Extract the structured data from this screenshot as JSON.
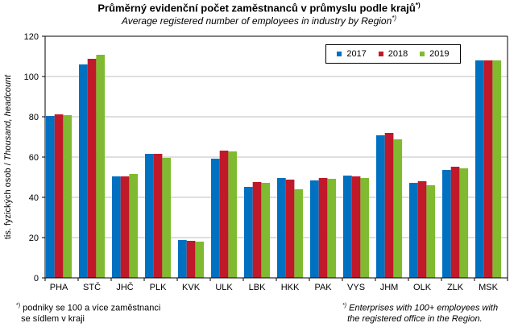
{
  "chart_data": {
    "type": "bar",
    "title": "Průměrný evidenční počet zaměstnanců v průmyslu podle krajů",
    "title_mark": "*)",
    "subtitle": "Average registered number of employees in industry by Region",
    "subtitle_mark": "*)",
    "ylabel_cz": "tis. fyzických osob / ",
    "ylabel_en": "Thousand, headcount",
    "xlabel": "",
    "ylim": [
      0,
      120
    ],
    "yticks": [
      0,
      20,
      40,
      60,
      80,
      100,
      120
    ],
    "grid": true,
    "legend_position": "top-right",
    "categories": [
      "PHA",
      "STČ",
      "JHČ",
      "PLK",
      "KVK",
      "ULK",
      "LBK",
      "HKK",
      "PAK",
      "VYS",
      "JHM",
      "OLK",
      "ZLK",
      "MSK"
    ],
    "series": [
      {
        "name": "2017",
        "color": "#0070C0",
        "values": [
          80.4,
          106.0,
          50.4,
          61.6,
          18.8,
          59.2,
          45.2,
          49.6,
          48.4,
          50.8,
          70.8,
          47.2,
          53.6,
          108.0
        ]
      },
      {
        "name": "2018",
        "color": "#C0192A",
        "values": [
          81.2,
          108.8,
          50.4,
          61.6,
          18.4,
          63.2,
          47.6,
          48.8,
          49.6,
          50.4,
          72.0,
          48.0,
          55.2,
          108.0
        ]
      },
      {
        "name": "2019",
        "color": "#7FBA31",
        "values": [
          80.8,
          110.8,
          51.6,
          59.6,
          18.0,
          62.8,
          47.2,
          44.0,
          49.2,
          49.6,
          68.8,
          46.0,
          54.4,
          108.0
        ]
      }
    ]
  },
  "footnotes": {
    "left_mark": "*)",
    "left_line1": "podniky se 100 a více zaměstnanci",
    "left_line2": "se sídlem  v kraji",
    "right_mark": "*)",
    "right_line1": "Enterprises with 100+ employees with",
    "right_line2": "the registered office in the Region."
  }
}
